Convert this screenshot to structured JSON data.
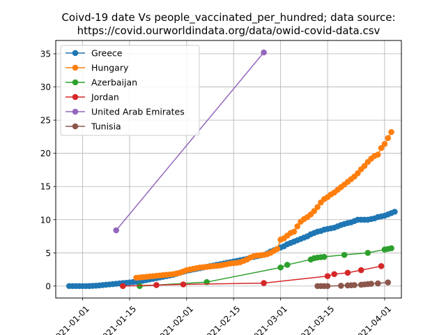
{
  "chart_data": {
    "type": "scatter",
    "title_line1": "Coivd-19 date Vs people_vaccinated_per_hundred; data source:",
    "title_line2": "https://covid.ourworldindata.org/data/owid-covid-data.csv",
    "xlabel": "",
    "ylabel": "",
    "xlim": [
      "2020-12-24",
      "2021-04-06"
    ],
    "ylim": [
      -1.8,
      37
    ],
    "x_ticks": [
      "2021-01-01",
      "2021-01-15",
      "2021-02-01",
      "2021-02-15",
      "2021-03-01",
      "2021-03-15",
      "2021-04-01"
    ],
    "y_ticks": [
      0,
      5,
      10,
      15,
      20,
      25,
      30,
      35
    ],
    "grid": true,
    "legend_position": "top-left",
    "series": [
      {
        "name": "Greece",
        "color": "#1f77b4",
        "points": [
          [
            "2020-12-28",
            0.0
          ],
          [
            "2020-12-29",
            0.0
          ],
          [
            "2020-12-30",
            0.0
          ],
          [
            "2020-12-31",
            0.0
          ],
          [
            "2021-01-01",
            0.0
          ],
          [
            "2021-01-02",
            0.0
          ],
          [
            "2021-01-03",
            0.01
          ],
          [
            "2021-01-04",
            0.03
          ],
          [
            "2021-01-05",
            0.06
          ],
          [
            "2021-01-06",
            0.1
          ],
          [
            "2021-01-07",
            0.15
          ],
          [
            "2021-01-08",
            0.2
          ],
          [
            "2021-01-09",
            0.25
          ],
          [
            "2021-01-10",
            0.3
          ],
          [
            "2021-01-11",
            0.35
          ],
          [
            "2021-01-12",
            0.4
          ],
          [
            "2021-01-13",
            0.45
          ],
          [
            "2021-01-14",
            0.5
          ],
          [
            "2021-01-15",
            0.55
          ],
          [
            "2021-01-16",
            0.6
          ],
          [
            "2021-01-17",
            0.65
          ],
          [
            "2021-01-18",
            0.7
          ],
          [
            "2021-01-19",
            0.8
          ],
          [
            "2021-01-20",
            0.9
          ],
          [
            "2021-01-21",
            1.0
          ],
          [
            "2021-01-22",
            1.1
          ],
          [
            "2021-01-23",
            1.2
          ],
          [
            "2021-01-24",
            1.3
          ],
          [
            "2021-01-25",
            1.4
          ],
          [
            "2021-01-26",
            1.5
          ],
          [
            "2021-01-27",
            1.6
          ],
          [
            "2021-01-28",
            1.7
          ],
          [
            "2021-01-29",
            1.85
          ],
          [
            "2021-01-30",
            2.0
          ],
          [
            "2021-01-31",
            2.15
          ],
          [
            "2021-02-01",
            2.3
          ],
          [
            "2021-02-02",
            2.4
          ],
          [
            "2021-02-03",
            2.5
          ],
          [
            "2021-02-04",
            2.6
          ],
          [
            "2021-02-05",
            2.7
          ],
          [
            "2021-02-06",
            2.8
          ],
          [
            "2021-02-07",
            2.9
          ],
          [
            "2021-02-08",
            3.0
          ],
          [
            "2021-02-09",
            3.1
          ],
          [
            "2021-02-10",
            3.2
          ],
          [
            "2021-02-11",
            3.3
          ],
          [
            "2021-02-12",
            3.4
          ],
          [
            "2021-02-13",
            3.5
          ],
          [
            "2021-02-14",
            3.6
          ],
          [
            "2021-02-15",
            3.7
          ],
          [
            "2021-02-16",
            3.8
          ],
          [
            "2021-02-17",
            3.9
          ],
          [
            "2021-02-18",
            4.0
          ],
          [
            "2021-02-19",
            4.1
          ],
          [
            "2021-02-20",
            4.3
          ],
          [
            "2021-02-21",
            4.4
          ],
          [
            "2021-02-22",
            4.5
          ],
          [
            "2021-02-23",
            4.6
          ],
          [
            "2021-02-24",
            4.7
          ],
          [
            "2021-02-25",
            4.9
          ],
          [
            "2021-02-26",
            5.2
          ],
          [
            "2021-02-27",
            5.4
          ],
          [
            "2021-02-28",
            5.6
          ],
          [
            "2021-03-01",
            5.8
          ],
          [
            "2021-03-02",
            6.0
          ],
          [
            "2021-03-03",
            6.3
          ],
          [
            "2021-03-04",
            6.5
          ],
          [
            "2021-03-05",
            6.7
          ],
          [
            "2021-03-06",
            6.9
          ],
          [
            "2021-03-07",
            7.1
          ],
          [
            "2021-03-08",
            7.3
          ],
          [
            "2021-03-09",
            7.5
          ],
          [
            "2021-03-10",
            7.8
          ],
          [
            "2021-03-11",
            8.0
          ],
          [
            "2021-03-12",
            8.2
          ],
          [
            "2021-03-13",
            8.3
          ],
          [
            "2021-03-14",
            8.5
          ],
          [
            "2021-03-15",
            8.6
          ],
          [
            "2021-03-16",
            8.7
          ],
          [
            "2021-03-17",
            8.8
          ],
          [
            "2021-03-18",
            9.0
          ],
          [
            "2021-03-19",
            9.2
          ],
          [
            "2021-03-20",
            9.35
          ],
          [
            "2021-03-21",
            9.5
          ],
          [
            "2021-03-22",
            9.6
          ],
          [
            "2021-03-23",
            9.8
          ],
          [
            "2021-03-24",
            10.0
          ],
          [
            "2021-03-25",
            10.0
          ],
          [
            "2021-03-26",
            10.0
          ],
          [
            "2021-03-27",
            10.0
          ],
          [
            "2021-03-28",
            10.1
          ],
          [
            "2021-03-29",
            10.2
          ],
          [
            "2021-03-30",
            10.4
          ],
          [
            "2021-03-31",
            10.5
          ],
          [
            "2021-04-01",
            10.6
          ],
          [
            "2021-04-02",
            10.8
          ],
          [
            "2021-04-03",
            11.0
          ],
          [
            "2021-04-04",
            11.2
          ]
        ]
      },
      {
        "name": "Hungary",
        "color": "#ff7f0e",
        "points": [
          [
            "2021-01-17",
            1.25
          ],
          [
            "2021-01-18",
            1.3
          ],
          [
            "2021-01-19",
            1.35
          ],
          [
            "2021-01-20",
            1.4
          ],
          [
            "2021-01-21",
            1.45
          ],
          [
            "2021-01-22",
            1.5
          ],
          [
            "2021-01-23",
            1.55
          ],
          [
            "2021-01-24",
            1.6
          ],
          [
            "2021-01-25",
            1.65
          ],
          [
            "2021-01-26",
            1.7
          ],
          [
            "2021-01-27",
            1.75
          ],
          [
            "2021-01-28",
            1.8
          ],
          [
            "2021-01-29",
            1.9
          ],
          [
            "2021-01-30",
            2.0
          ],
          [
            "2021-01-31",
            2.2
          ],
          [
            "2021-02-01",
            2.4
          ],
          [
            "2021-02-02",
            2.5
          ],
          [
            "2021-02-03",
            2.6
          ],
          [
            "2021-02-04",
            2.7
          ],
          [
            "2021-02-05",
            2.8
          ],
          [
            "2021-02-06",
            2.85
          ],
          [
            "2021-02-07",
            2.9
          ],
          [
            "2021-02-08",
            2.95
          ],
          [
            "2021-02-09",
            3.0
          ],
          [
            "2021-02-10",
            3.05
          ],
          [
            "2021-02-11",
            3.1
          ],
          [
            "2021-02-12",
            3.2
          ],
          [
            "2021-02-13",
            3.3
          ],
          [
            "2021-02-14",
            3.4
          ],
          [
            "2021-02-15",
            3.45
          ],
          [
            "2021-02-16",
            3.5
          ],
          [
            "2021-02-17",
            3.6
          ],
          [
            "2021-02-18",
            3.8
          ],
          [
            "2021-02-19",
            4.0
          ],
          [
            "2021-02-20",
            4.3
          ],
          [
            "2021-02-21",
            4.5
          ],
          [
            "2021-02-22",
            4.6
          ],
          [
            "2021-02-23",
            4.65
          ],
          [
            "2021-02-24",
            4.7
          ],
          [
            "2021-02-25",
            4.8
          ],
          [
            "2021-02-26",
            5.0
          ],
          [
            "2021-02-27",
            5.3
          ],
          [
            "2021-02-28",
            5.6
          ],
          [
            "2021-03-01",
            7.0
          ],
          [
            "2021-03-02",
            7.2
          ],
          [
            "2021-03-03",
            7.6
          ],
          [
            "2021-03-04",
            8.0
          ],
          [
            "2021-03-05",
            8.2
          ],
          [
            "2021-03-06",
            9.0
          ],
          [
            "2021-03-07",
            9.7
          ],
          [
            "2021-03-08",
            10.1
          ],
          [
            "2021-03-09",
            10.4
          ],
          [
            "2021-03-10",
            10.8
          ],
          [
            "2021-03-11",
            11.3
          ],
          [
            "2021-03-12",
            11.9
          ],
          [
            "2021-03-13",
            12.6
          ],
          [
            "2021-03-14",
            13.1
          ],
          [
            "2021-03-15",
            13.4
          ],
          [
            "2021-03-16",
            13.8
          ],
          [
            "2021-03-17",
            14.1
          ],
          [
            "2021-03-18",
            14.5
          ],
          [
            "2021-03-19",
            14.9
          ],
          [
            "2021-03-20",
            15.3
          ],
          [
            "2021-03-21",
            15.7
          ],
          [
            "2021-03-22",
            16.1
          ],
          [
            "2021-03-23",
            16.5
          ],
          [
            "2021-03-24",
            17.0
          ],
          [
            "2021-03-25",
            17.6
          ],
          [
            "2021-03-26",
            18.1
          ],
          [
            "2021-03-27",
            18.7
          ],
          [
            "2021-03-28",
            19.2
          ],
          [
            "2021-03-29",
            19.6
          ],
          [
            "2021-03-30",
            19.8
          ],
          [
            "2021-03-31",
            20.8
          ],
          [
            "2021-04-01",
            21.4
          ],
          [
            "2021-04-02",
            22.3
          ],
          [
            "2021-04-03",
            23.2
          ]
        ]
      },
      {
        "name": "Azerbaijan",
        "color": "#2ca02c",
        "points": [
          [
            "2021-01-18",
            0.0
          ],
          [
            "2021-02-07",
            0.6
          ],
          [
            "2021-03-01",
            2.8
          ],
          [
            "2021-03-03",
            3.2
          ],
          [
            "2021-03-10",
            4.0
          ],
          [
            "2021-03-11",
            4.2
          ],
          [
            "2021-03-12",
            4.3
          ],
          [
            "2021-03-13",
            4.35
          ],
          [
            "2021-03-14",
            4.4
          ],
          [
            "2021-03-20",
            4.7
          ],
          [
            "2021-03-27",
            5.0
          ],
          [
            "2021-04-01",
            5.5
          ],
          [
            "2021-04-02",
            5.6
          ],
          [
            "2021-04-03",
            5.7
          ]
        ]
      },
      {
        "name": "Jordan",
        "color": "#d62728",
        "points": [
          [
            "2021-01-13",
            0.0
          ],
          [
            "2021-01-23",
            0.15
          ],
          [
            "2021-01-31",
            0.25
          ],
          [
            "2021-02-24",
            0.45
          ],
          [
            "2021-03-15",
            1.5
          ],
          [
            "2021-03-17",
            1.8
          ],
          [
            "2021-03-21",
            2.0
          ],
          [
            "2021-03-25",
            2.4
          ],
          [
            "2021-03-31",
            3.0
          ]
        ]
      },
      {
        "name": "United Arab Emirates",
        "color": "#9467bd",
        "points": [
          [
            "2021-01-11",
            8.4
          ],
          [
            "2021-02-24",
            35.2
          ]
        ]
      },
      {
        "name": "Tunisia",
        "color": "#8c564b",
        "points": [
          [
            "2021-03-12",
            0.0
          ],
          [
            "2021-03-13",
            0.0
          ],
          [
            "2021-03-14",
            0.0
          ],
          [
            "2021-03-15",
            0.0
          ],
          [
            "2021-03-19",
            0.05
          ],
          [
            "2021-03-21",
            0.1
          ],
          [
            "2021-03-22",
            0.12
          ],
          [
            "2021-03-23",
            0.15
          ],
          [
            "2021-03-25",
            0.2
          ],
          [
            "2021-03-26",
            0.25
          ],
          [
            "2021-03-27",
            0.3
          ],
          [
            "2021-03-28",
            0.35
          ],
          [
            "2021-03-30",
            0.4
          ],
          [
            "2021-04-02",
            0.55
          ]
        ]
      }
    ]
  }
}
